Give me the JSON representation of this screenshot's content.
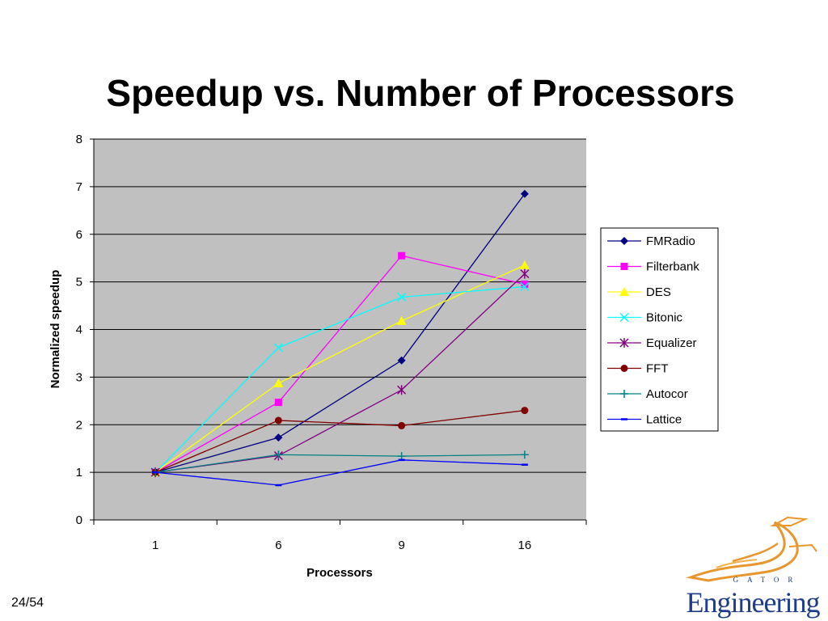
{
  "slide": {
    "title": "Speedup vs. Number of Processors",
    "page_number": "24/54"
  },
  "logo": {
    "wordmark": "Engineering",
    "sub": "GATOR"
  },
  "chart_data": {
    "type": "line",
    "xlabel": "Processors",
    "ylabel": "Normalized speedup",
    "categories": [
      "1",
      "6",
      "9",
      "16"
    ],
    "ylim": [
      0,
      8
    ],
    "yticks": [
      0,
      1,
      2,
      3,
      4,
      5,
      6,
      7,
      8
    ],
    "grid": "horizontal",
    "background": "#c0c0c0",
    "legend_position": "right",
    "series": [
      {
        "name": "FMRadio",
        "color": "#000080",
        "marker": "diamond",
        "values": [
          1.0,
          1.73,
          3.35,
          6.85
        ]
      },
      {
        "name": "Filterbank",
        "color": "#ff00ff",
        "marker": "square",
        "values": [
          1.0,
          2.47,
          5.55,
          4.95
        ]
      },
      {
        "name": "DES",
        "color": "#ffff00",
        "marker": "triangle",
        "values": [
          1.0,
          2.87,
          4.18,
          5.35
        ]
      },
      {
        "name": "Bitonic",
        "color": "#00ffff",
        "marker": "x",
        "values": [
          1.0,
          3.62,
          4.68,
          4.9
        ]
      },
      {
        "name": "Equalizer",
        "color": "#800080",
        "marker": "star",
        "values": [
          1.0,
          1.35,
          2.73,
          5.17
        ]
      },
      {
        "name": "FFT",
        "color": "#800000",
        "marker": "circle",
        "values": [
          1.0,
          2.09,
          1.98,
          2.3
        ]
      },
      {
        "name": "Autocor",
        "color": "#008080",
        "marker": "plus",
        "values": [
          1.0,
          1.37,
          1.34,
          1.37
        ]
      },
      {
        "name": "Lattice",
        "color": "#0000ff",
        "marker": "dash",
        "values": [
          1.0,
          0.73,
          1.26,
          1.16
        ]
      }
    ]
  }
}
